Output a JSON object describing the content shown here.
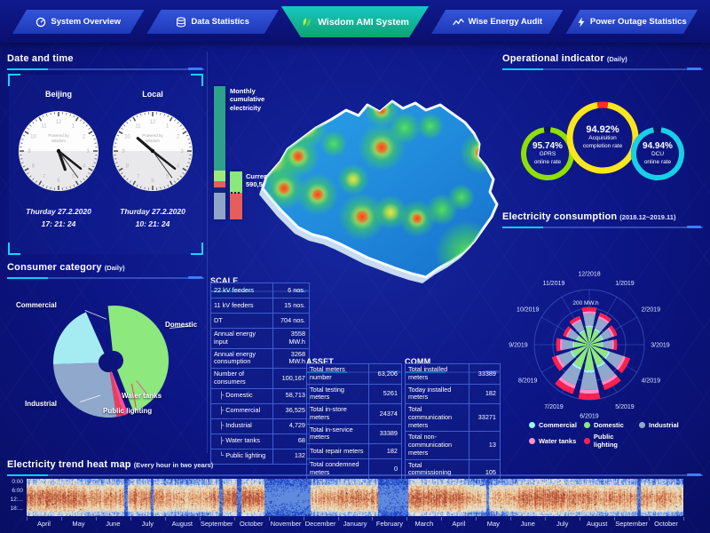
{
  "nav": {
    "tabs": [
      {
        "label": "System Overview",
        "icon": "overview-icon",
        "active": false
      },
      {
        "label": "Data Statistics",
        "icon": "database-icon",
        "active": false
      },
      {
        "label": "Wisdom AMI System",
        "icon": "wisdom-leaf-icon",
        "active": true
      },
      {
        "label": "Wise Energy Audit",
        "icon": "trend-icon",
        "active": false
      },
      {
        "label": "Power Outage Statistics",
        "icon": "lightning-icon",
        "active": false
      }
    ]
  },
  "datetime_panel": {
    "title": "Date and time",
    "watermark_line1": "Powered by",
    "watermark_line2": "Wisdom",
    "clocks": [
      {
        "label": "Beijing",
        "date": "Thurday 27.2.2020",
        "time": "17: 21: 24",
        "h": 17,
        "m": 21,
        "s": 24
      },
      {
        "label": "Local",
        "date": "Thurday 27.2.2020",
        "time": "10: 21: 24",
        "h": 10,
        "m": 21,
        "s": 24
      }
    ]
  },
  "consumer_panel": {
    "title": "Consumer category",
    "subtitle": "(Daily)"
  },
  "cumulative_bar_label": "Monthly cumulative electricity",
  "current_load": {
    "label": "Current load",
    "value": "590,569 kW"
  },
  "scale_table": {
    "title": "SCALE",
    "rows": [
      [
        "22 kV feeders",
        "6 nos."
      ],
      [
        "11 kV feeders",
        "15 nos."
      ],
      [
        "DT",
        "704 nos."
      ],
      [
        "Annual energy input",
        "3558 MW.h"
      ],
      [
        "Annual energy consumption",
        "3268 MW.h"
      ],
      [
        "Number of consumers",
        "100,167"
      ],
      [
        "├ Domestic",
        "58,713"
      ],
      [
        "├ Commercial",
        "36,525"
      ],
      [
        "├ Industrial",
        "4,729"
      ],
      [
        "├ Water tanks",
        "68"
      ],
      [
        "└ Public lighting",
        "132"
      ]
    ]
  },
  "asset_table": {
    "title": "ASSET",
    "rows": [
      [
        "Total meters number",
        "63,206"
      ],
      [
        "Total testing meters",
        "5261"
      ],
      [
        "Total in-store meters",
        "24374"
      ],
      [
        "Total in-service meters",
        "33389"
      ],
      [
        "Total repair meters",
        "182"
      ],
      [
        "Total condemned meters",
        "0"
      ]
    ]
  },
  "comm_table": {
    "title": "COMM",
    "rows": [
      [
        "Total installed meters",
        "33389"
      ],
      [
        "Today installed meters",
        "182"
      ],
      [
        "Total communication meters",
        "33271"
      ],
      [
        "Total non-communication meters",
        "13"
      ],
      [
        "Total commissioning meters",
        "105"
      ]
    ]
  },
  "operational_panel": {
    "title": "Operational indicator",
    "subtitle": "(Daily)",
    "gauges": [
      {
        "value": "95.74%",
        "line1": "GPRS",
        "line2": "online rate",
        "pct": 95.74,
        "color": "#8ee000",
        "gap_color": "#0b1468"
      },
      {
        "value": "94.92%",
        "line1": "Acquisition",
        "line2": "completion rate",
        "pct": 94.92,
        "color": "#f8e71c",
        "gap_color": "#ff2d2d"
      },
      {
        "value": "94.94%",
        "line1": "DCU",
        "line2": "online rate",
        "pct": 94.94,
        "color": "#18cfe8",
        "gap_color": "#0b1468"
      }
    ]
  },
  "consumption_panel": {
    "title": "Electricity consumption",
    "subtitle": "(2018.12~2019.11)",
    "radial_axis_label": "200 MW.h"
  },
  "heatmap_panel": {
    "title": "Electricity trend heat map",
    "subtitle": "(Every hour in two years)"
  },
  "chart_data": [
    {
      "id": "consumer_pie",
      "type": "pie",
      "title": "Consumer category (Daily)",
      "labels": [
        "Commercial",
        "Domestic",
        "Industrial",
        "Water tanks",
        "Public lighting"
      ],
      "values": [
        19,
        46,
        27,
        1.5,
        2
      ],
      "colors": {
        "Commercial": "#a5ecf2",
        "Domestic": "#8de87e",
        "Industrial": "#8fa8cc",
        "Water tanks": "#ff4d94",
        "Public lighting": "#e8405a"
      }
    },
    {
      "id": "consumption_rose",
      "type": "bar",
      "subtype": "polar-stacked",
      "title": "Electricity consumption (2018.12~2019.11)",
      "categories": [
        "12/2018",
        "1/2019",
        "2/2019",
        "3/2019",
        "4/2019",
        "5/2019",
        "6/2019",
        "7/2019",
        "8/2019",
        "9/2019",
        "10/2019",
        "11/2019"
      ],
      "rmax": 300,
      "radial_axis_label": "200 MW.h",
      "series": [
        {
          "name": "Domestic",
          "color": "#8de87e",
          "values": [
            94,
            85,
            74,
            69,
            108,
            120,
            138,
            131,
            99,
            83,
            69,
            76
          ]
        },
        {
          "name": "Commercial",
          "color": "#9ff0f0",
          "values": [
            10,
            9,
            8,
            8,
            12,
            13,
            15,
            14,
            11,
            9,
            8,
            8
          ]
        },
        {
          "name": "Industrial",
          "color": "#8fa8cc",
          "values": [
            64,
            57,
            50,
            47,
            73,
            81,
            93,
            88,
            67,
            56,
            47,
            51
          ]
        },
        {
          "name": "Water tanks",
          "color": "#ff8fc8",
          "values": [
            14,
            13,
            11,
            11,
            16,
            18,
            21,
            20,
            15,
            13,
            11,
            12
          ]
        },
        {
          "name": "Public lighting",
          "color": "#ff2050",
          "values": [
            23,
            20,
            18,
            17,
            26,
            29,
            33,
            31,
            24,
            20,
            17,
            18
          ]
        }
      ],
      "legend_order": [
        [
          "Commercial",
          "Domestic",
          "Industrial"
        ],
        [
          "Water tanks",
          "Public lighting"
        ]
      ]
    },
    {
      "id": "trend_heatmap",
      "type": "heatmap",
      "title": "Electricity trend heat map (Every hour in two years)",
      "x_labels": [
        "April",
        "May",
        "June",
        "July",
        "August",
        "September",
        "October",
        "November",
        "December",
        "January",
        "February",
        "March",
        "April",
        "May",
        "June",
        "July",
        "August",
        "September",
        "October"
      ],
      "y_labels": [
        "0:00",
        "6:00",
        "12:...",
        "18:..."
      ],
      "palette": [
        "#1e46c8",
        "#5f8ade",
        "#aac4ea",
        "#e9e4cf",
        "#ecd3ad",
        "#e3a87b",
        "#d0764f",
        "#b04a36"
      ],
      "cool_stripes": [
        {
          "from": 0.148,
          "to": 0.154,
          "strength": 1
        },
        {
          "from": 0.188,
          "to": 0.193,
          "strength": 1
        },
        {
          "from": 0.293,
          "to": 0.298,
          "strength": 1
        },
        {
          "from": 0.32,
          "to": 0.326,
          "strength": 1
        },
        {
          "from": 0.361,
          "to": 0.432,
          "strength": 0.8
        },
        {
          "from": 0.534,
          "to": 0.581,
          "strength": 0.85
        },
        {
          "from": 0.7,
          "to": 0.704,
          "strength": 1
        },
        {
          "from": 0.929,
          "to": 0.935,
          "strength": 1
        }
      ]
    },
    {
      "id": "monthly_cumulative_bar",
      "type": "bar",
      "subtype": "stacked-vertical",
      "segments": [
        {
          "color": "#2fa08e",
          "frac": 0.63
        },
        {
          "color": "#9fe87c",
          "frac": 0.08
        },
        {
          "color": "#e85c5c",
          "frac": 0.05
        },
        {
          "color": "#16247a",
          "frac": 0.04
        },
        {
          "color": "#8fa6c8",
          "frac": 0.2
        }
      ]
    },
    {
      "id": "current_load_bar",
      "type": "bar",
      "subtype": "stacked-vertical",
      "segments": [
        {
          "color": "#8de87c",
          "frac": 0.44
        },
        {
          "color": "#e85c5c",
          "frac": 0.56
        }
      ]
    }
  ]
}
